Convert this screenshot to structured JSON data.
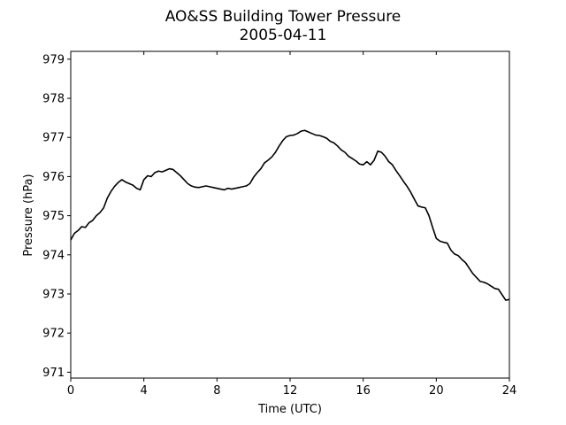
{
  "chart_data": {
    "type": "line",
    "title": "AO&SS Building Tower Pressure",
    "subtitle": "2005-04-11",
    "xlabel": "Time (UTC)",
    "ylabel": "Pressure (hPa)",
    "xlim": [
      0,
      24
    ],
    "ylim": [
      970.85,
      979.2
    ],
    "xticks": [
      0,
      4,
      8,
      12,
      16,
      20,
      24
    ],
    "yticks": [
      971,
      972,
      973,
      974,
      975,
      976,
      977,
      978,
      979
    ],
    "grid": false,
    "line_color": "#000000",
    "series": [
      {
        "x": [
          0.0,
          0.2,
          0.4,
          0.6,
          0.8,
          1.0,
          1.2,
          1.4,
          1.6,
          1.8,
          2.0,
          2.2,
          2.4,
          2.6,
          2.8,
          3.0,
          3.2,
          3.4,
          3.6,
          3.8,
          4.0,
          4.2,
          4.4,
          4.6,
          4.8,
          5.0,
          5.2,
          5.4,
          5.6,
          5.8,
          6.0,
          6.2,
          6.4,
          6.6,
          6.8,
          7.0,
          7.2,
          7.4,
          7.6,
          7.8,
          8.0,
          8.2,
          8.4,
          8.6,
          8.8,
          9.0,
          9.2,
          9.4,
          9.6,
          9.8,
          10.0,
          10.2,
          10.4,
          10.6,
          10.8,
          11.0,
          11.2,
          11.4,
          11.6,
          11.8,
          12.0,
          12.2,
          12.4,
          12.6,
          12.8,
          13.0,
          13.2,
          13.4,
          13.6,
          13.8,
          14.0,
          14.2,
          14.4,
          14.6,
          14.8,
          15.0,
          15.2,
          15.4,
          15.6,
          15.8,
          16.0,
          16.2,
          16.4,
          16.6,
          16.8,
          17.0,
          17.2,
          17.4,
          17.6,
          17.8,
          18.0,
          18.2,
          18.4,
          18.6,
          18.8,
          19.0,
          19.2,
          19.4,
          19.6,
          19.8,
          20.0,
          20.2,
          20.4,
          20.6,
          20.8,
          21.0,
          21.2,
          21.4,
          21.6,
          21.8,
          22.0,
          22.2,
          22.4,
          22.6,
          22.8,
          23.0,
          23.2,
          23.4,
          23.6,
          23.8,
          24.0
        ],
        "values": [
          974.38,
          974.55,
          974.62,
          974.72,
          974.7,
          974.82,
          974.88,
          975.0,
          975.08,
          975.2,
          975.45,
          975.62,
          975.75,
          975.85,
          975.92,
          975.86,
          975.82,
          975.78,
          975.7,
          975.66,
          975.92,
          976.02,
          976.0,
          976.1,
          976.14,
          976.12,
          976.16,
          976.2,
          976.18,
          976.1,
          976.02,
          975.92,
          975.82,
          975.76,
          975.73,
          975.72,
          975.74,
          975.76,
          975.74,
          975.72,
          975.7,
          975.68,
          975.66,
          975.7,
          975.68,
          975.7,
          975.72,
          975.74,
          975.76,
          975.82,
          975.98,
          976.1,
          976.2,
          976.35,
          976.42,
          976.5,
          976.62,
          976.78,
          976.92,
          977.02,
          977.05,
          977.06,
          977.1,
          977.16,
          977.18,
          977.14,
          977.1,
          977.06,
          977.05,
          977.02,
          976.98,
          976.9,
          976.86,
          976.78,
          976.68,
          976.62,
          976.52,
          976.46,
          976.4,
          976.32,
          976.3,
          976.38,
          976.3,
          976.42,
          976.65,
          976.62,
          976.52,
          976.38,
          976.3,
          976.15,
          976.02,
          975.88,
          975.75,
          975.6,
          975.42,
          975.25,
          975.22,
          975.2,
          975.0,
          974.7,
          974.42,
          974.35,
          974.32,
          974.3,
          974.12,
          974.02,
          973.98,
          973.88,
          973.8,
          973.66,
          973.52,
          973.42,
          973.32,
          973.3,
          973.26,
          973.2,
          973.14,
          973.12,
          972.98,
          972.84,
          972.86
        ]
      }
    ]
  }
}
